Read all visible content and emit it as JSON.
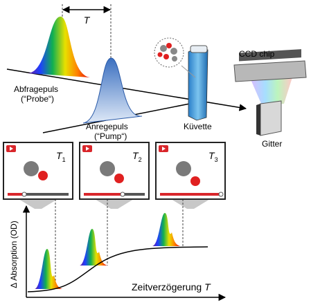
{
  "delay_label": "T",
  "probe": {
    "name": "Abfragepuls",
    "note": "(“Probe“)"
  },
  "pump": {
    "name": "Anregepuls",
    "note": "(“Pump“)"
  },
  "cuvette": "Küvette",
  "detector": "CCD chip",
  "grating": "Gitter",
  "panels": [
    {
      "label": "T",
      "sub": "1"
    },
    {
      "label": "T",
      "sub": "2"
    },
    {
      "label": "T",
      "sub": "3"
    }
  ],
  "graph": {
    "y_label": "Δ Absorption (OD)",
    "x_label": "Zeitverzögerung",
    "x_symbol": "T"
  }
}
